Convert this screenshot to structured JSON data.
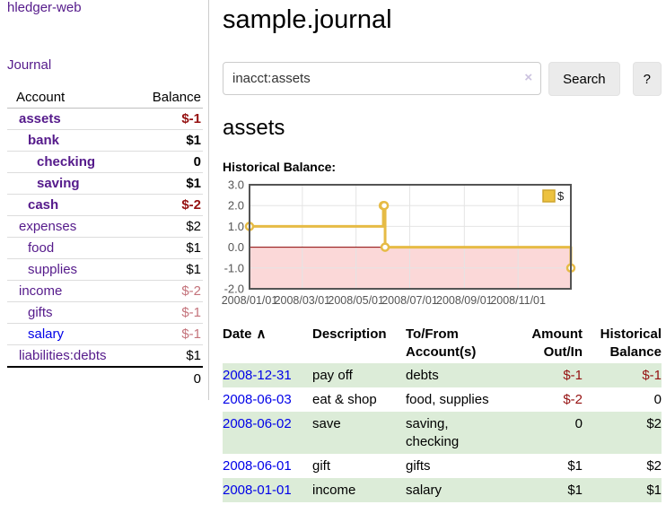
{
  "colors": {
    "accent_purple": "#551a8b",
    "link_blue": "#0000e8",
    "negative_strong": "#951111",
    "negative_soft": "#c4737b",
    "row_stripe_green": "#dcecd8"
  },
  "sidebar": {
    "app_title": "hledger-web",
    "nav": {
      "journal": "Journal"
    },
    "accounts_table": {
      "headers": {
        "account": "Account",
        "balance": "Balance"
      },
      "rows": [
        {
          "name": "assets",
          "balance": "$-1",
          "indent": 1,
          "bold": true,
          "neg": "strong"
        },
        {
          "name": "bank",
          "balance": "$1",
          "indent": 2,
          "bold": true,
          "neg": "none"
        },
        {
          "name": "checking",
          "balance": "0",
          "indent": 3,
          "bold": true,
          "neg": "none"
        },
        {
          "name": "saving",
          "balance": "$1",
          "indent": 3,
          "bold": true,
          "neg": "none"
        },
        {
          "name": "cash",
          "balance": "$-2",
          "indent": 2,
          "bold": true,
          "neg": "strong"
        },
        {
          "name": "expenses",
          "balance": "$2",
          "indent": 1,
          "bold": false,
          "neg": "none"
        },
        {
          "name": "food",
          "balance": "$1",
          "indent": 2,
          "bold": false,
          "neg": "none"
        },
        {
          "name": "supplies",
          "balance": "$1",
          "indent": 2,
          "bold": false,
          "neg": "none"
        },
        {
          "name": "income",
          "balance": "$-2",
          "indent": 1,
          "bold": false,
          "neg": "soft"
        },
        {
          "name": "gifts",
          "balance": "$-1",
          "indent": 2,
          "bold": false,
          "neg": "soft"
        },
        {
          "name": "salary",
          "balance": "$-1",
          "indent": 2,
          "bold": false,
          "neg": "soft",
          "link_blue": true
        },
        {
          "name": "liabilities:debts",
          "balance": "$1",
          "indent": 1,
          "bold": false,
          "neg": "none"
        }
      ],
      "total": "0"
    }
  },
  "header": {
    "title": "sample.journal"
  },
  "search": {
    "value": "inacct:assets",
    "clear_icon": "×",
    "button_label": "Search",
    "help_label": "?"
  },
  "account_page": {
    "heading": "assets",
    "chart_title": "Historical Balance:"
  },
  "chart_data": {
    "type": "line",
    "step": true,
    "title": "Historical Balance",
    "xlim": [
      "2008-01-01",
      "2008-12-31"
    ],
    "ylim": [
      -2,
      3
    ],
    "grid": true,
    "legend_position": "top-right",
    "series": [
      {
        "name": "$",
        "points": [
          [
            "2008-01-01",
            1
          ],
          [
            "2008-06-01",
            2
          ],
          [
            "2008-06-02",
            2
          ],
          [
            "2008-06-03",
            0
          ],
          [
            "2008-12-31",
            -1
          ]
        ]
      }
    ],
    "x_ticks": [
      {
        "date": "2008-01-01",
        "label": "2008/01/01"
      },
      {
        "date": "2008-03-01",
        "label": "2008/03/01"
      },
      {
        "date": "2008-05-01",
        "label": "2008/05/01"
      },
      {
        "date": "2008-07-01",
        "label": "2008/07/01"
      },
      {
        "date": "2008-09-01",
        "label": "2008/09/01"
      },
      {
        "date": "2008-11-01",
        "label": "2008/11/01"
      }
    ],
    "y_ticks": [
      {
        "v": 3,
        "label": "3.0"
      },
      {
        "v": 2,
        "label": "2.0"
      },
      {
        "v": 1,
        "label": "1.0"
      },
      {
        "v": 0,
        "label": "0.0"
      },
      {
        "v": -1,
        "label": "-1.0"
      },
      {
        "v": -2,
        "label": "-2.0"
      }
    ],
    "colors": {
      "line": "#e6bb45",
      "legend_square_fill": "#edc240",
      "legend_square_border": "#cfa52e",
      "point_fill": "#ffffff",
      "below_zero_fill": "#fbd8d8",
      "zero_line": "#8b0000",
      "border": "#545454",
      "grid": "#e4e4e4",
      "axis_text": "#545454"
    }
  },
  "register_table": {
    "headers": {
      "date": "Date",
      "sort_icon": "∧",
      "description": "Description",
      "accounts": "To/From Account(s)",
      "amount": "Amount Out/In",
      "balance": "Historical Balance"
    },
    "rows": [
      {
        "date": "2008-12-31",
        "description": "pay off",
        "accounts": "debts",
        "amount": "$-1",
        "balance": "$-1",
        "shade": true
      },
      {
        "date": "2008-06-03",
        "description": "eat & shop",
        "accounts": "food, supplies",
        "amount": "$-2",
        "balance": "0",
        "shade": false
      },
      {
        "date": "2008-06-02",
        "description": "save",
        "accounts": "saving, checking",
        "amount": "0",
        "balance": "$2",
        "shade": true
      },
      {
        "date": "2008-06-01",
        "description": "gift",
        "accounts": "gifts",
        "amount": "$1",
        "balance": "$2",
        "shade": false
      },
      {
        "date": "2008-01-01",
        "description": "income",
        "accounts": "salary",
        "amount": "$1",
        "balance": "$1",
        "shade": true
      }
    ]
  }
}
